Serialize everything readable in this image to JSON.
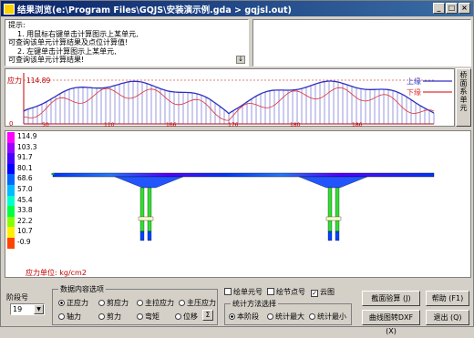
{
  "window": {
    "title": "结果浏览(e:\\Program Files\\GQJS\\安装演示例.gda > gqjsl.out)",
    "ctrl_min": "_",
    "ctrl_max": "□",
    "ctrl_close": "×"
  },
  "hint": {
    "heading": "提示:",
    "line1": "1. 用鼠标右键单击计算图示上某单元,",
    "line2": "可查询该单元计算结果及点位计算值!",
    "line3": "2. 左键单击计算图示上某单元,",
    "line4": "可查询该单元计算结果!",
    "pin_glyph": "↓"
  },
  "chart": {
    "ylabel": "应力",
    "max_label": "114.89",
    "zero_label": "0",
    "legend_upper": "上缘",
    "legend_lower": "下缘",
    "upper_color": "#3030c0",
    "lower_color": "#e03030",
    "x_ticks": [
      "0",
      "50",
      "110",
      "166",
      "176",
      "180",
      "186"
    ]
  },
  "side_tab": {
    "label": "桥面系单元"
  },
  "legend": {
    "values": [
      "114.9",
      "103.3",
      "91.7",
      "80.1",
      "68.6",
      "57.0",
      "45.4",
      "33.8",
      "22.2",
      "10.7",
      "-0.9"
    ],
    "colors": [
      "#ff00ff",
      "#9900ff",
      "#4400ff",
      "#0000ff",
      "#0066ff",
      "#00bbff",
      "#00ffcc",
      "#00ff44",
      "#88ff00",
      "#ffee00",
      "#ff4400"
    ],
    "unit": "应力单位: kg/cm2"
  },
  "bottom": {
    "stage_label": "阶段号",
    "stage_value": "19",
    "content_group": "数据内容选项",
    "opt_normal": "正应力",
    "opt_shear_stress": "剪应力",
    "opt_main_tension": "主拉应力",
    "opt_main_compression": "主压应力",
    "opt_axial": "轴力",
    "opt_shear": "剪力",
    "opt_moment": "弯矩",
    "opt_displacement": "位移",
    "disp_btn": "Σ",
    "chk_element_no": "绘单元号",
    "chk_node_no": "绘节点号",
    "chk_cloud": "云图",
    "chk_cloud_mark": "✓",
    "stat_group": "统计方法选择",
    "stat_stage": "本阶段",
    "stat_max": "统计最大",
    "stat_min": "统计最小",
    "btn_section": "截面验算 (J)",
    "btn_help": "帮助 (F1)",
    "btn_curve": "曲线图转DXF (X)",
    "btn_exit": "退出 (Q)"
  }
}
